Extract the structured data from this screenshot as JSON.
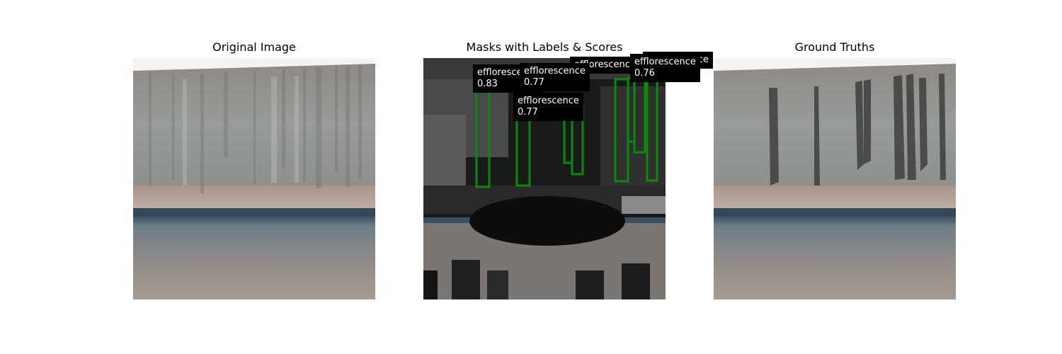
{
  "panels": {
    "original": {
      "title": "Original Image"
    },
    "masks": {
      "title": "Masks with Labels & Scores"
    },
    "ground_truth": {
      "title": "Ground Truths"
    }
  },
  "detections": [
    {
      "label": "efflorescence",
      "score": "0.83"
    },
    {
      "label": "efflorescence",
      "score": "0.77"
    },
    {
      "label": "efflorescence",
      "score": "0.77"
    },
    {
      "label": "efflorescence",
      "score": ""
    },
    {
      "label": "efflorescence",
      "score": ""
    },
    {
      "label": "efflorescence",
      "score": "0.76"
    }
  ],
  "colors": {
    "mask_outline": "#0a8a0a",
    "label_bg": "#000000",
    "label_text": "#ffffff"
  }
}
